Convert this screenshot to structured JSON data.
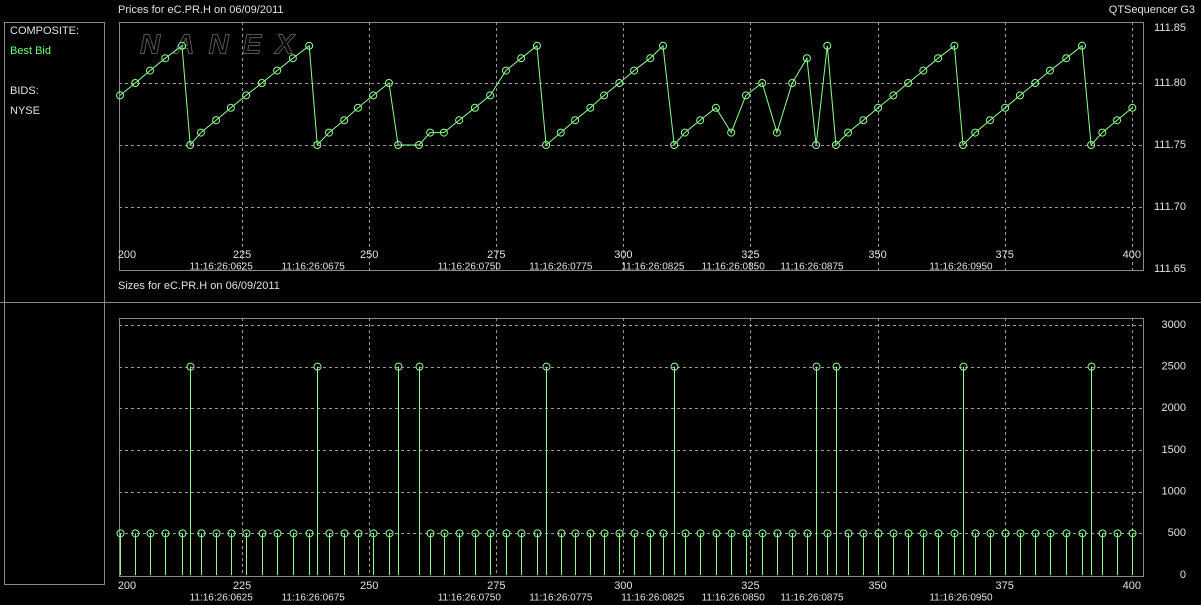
{
  "brand": "QTSequencer G3",
  "watermark": "NANEX",
  "panel": {
    "composite": "COMPOSITE:",
    "bids": "BIDS:",
    "exchange": "NYSE"
  },
  "chart_data": [
    {
      "type": "line",
      "title": "Prices for  eC.PR.H  on  06/09/2011",
      "x": [
        201.0,
        204.0,
        206.9,
        209.9,
        213.2,
        214.8,
        216.9,
        219.9,
        222.8,
        225.8,
        228.9,
        231.9,
        235.0,
        238.2,
        239.8,
        242.1,
        245.1,
        247.8,
        250.8,
        253.9,
        255.7,
        259.8,
        262.0,
        264.7,
        267.7,
        270.8,
        273.8,
        276.9,
        279.9,
        283.0,
        284.8,
        287.7,
        290.5,
        293.5,
        296.2,
        299.2,
        302.1,
        305.3,
        307.8,
        310.0,
        312.1,
        315.1,
        318.2,
        321.2,
        324.1,
        327.3,
        330.2,
        333.2,
        336.1,
        337.9,
        340.1,
        341.8,
        344.2,
        347.2,
        350.1,
        353.1,
        356.0,
        359.0,
        361.9,
        365.1,
        366.8,
        369.2,
        372.1,
        375.1,
        378.0,
        381.0,
        383.9,
        387.1,
        390.2,
        392.0,
        394.2,
        397.1,
        400.1
      ],
      "series": [
        {
          "name": "Best Bid",
          "color": "#8cff8c",
          "values": [
            111.79,
            111.8,
            111.81,
            111.82,
            111.83,
            111.75,
            111.76,
            111.77,
            111.78,
            111.79,
            111.8,
            111.81,
            111.82,
            111.83,
            111.75,
            111.76,
            111.77,
            111.78,
            111.79,
            111.8,
            111.75,
            111.75,
            111.76,
            111.76,
            111.77,
            111.78,
            111.79,
            111.81,
            111.82,
            111.83,
            111.75,
            111.76,
            111.77,
            111.78,
            111.79,
            111.8,
            111.81,
            111.82,
            111.83,
            111.75,
            111.76,
            111.77,
            111.78,
            111.76,
            111.79,
            111.8,
            111.76,
            111.8,
            111.82,
            111.75,
            111.83,
            111.75,
            111.76,
            111.77,
            111.78,
            111.79,
            111.8,
            111.81,
            111.82,
            111.83,
            111.75,
            111.76,
            111.77,
            111.78,
            111.79,
            111.8,
            111.81,
            111.82,
            111.83,
            111.75,
            111.76,
            111.77,
            111.78
          ]
        }
      ],
      "xlim": [
        200.8,
        402.2
      ],
      "xticks": [
        200,
        225,
        250,
        275,
        300,
        325,
        350,
        375,
        400
      ],
      "ylim": [
        111.65,
        111.85
      ],
      "yticks": [
        111.65,
        {
          "value": 111.7,
          "label": "111.70"
        },
        111.75,
        {
          "value": 111.8,
          "label": "111.80"
        },
        111.85
      ],
      "annotations": [
        {
          "value": 220.9,
          "label": "11:16:26:0625"
        },
        {
          "value": 239.0,
          "label": "11:16:26:0675"
        },
        {
          "value": 269.7,
          "label": "11:16:26:0750"
        },
        {
          "value": 287.7,
          "label": "11:16:26:0775"
        },
        {
          "value": 305.8,
          "label": "11:16:26:0825"
        },
        {
          "value": 321.6,
          "label": "11:16:26:0850"
        },
        {
          "value": 337.1,
          "label": "11:16:26:0875"
        },
        {
          "value": 366.4,
          "label": "11:16:26:0950"
        }
      ],
      "grid": true
    },
    {
      "type": "stem",
      "title": "Sizes for  eC.PR.H  on  06/09/2011",
      "x": [
        201.0,
        204.0,
        206.9,
        209.9,
        213.2,
        214.8,
        216.9,
        219.9,
        222.8,
        225.8,
        228.9,
        231.9,
        235.0,
        238.2,
        239.8,
        242.1,
        245.1,
        247.8,
        250.8,
        253.9,
        255.7,
        259.8,
        262.0,
        264.7,
        267.7,
        270.8,
        273.8,
        276.9,
        279.9,
        283.0,
        284.8,
        287.7,
        290.5,
        293.5,
        296.2,
        299.2,
        302.1,
        305.3,
        307.8,
        310.0,
        312.1,
        315.1,
        318.2,
        321.2,
        324.1,
        327.3,
        330.2,
        333.2,
        336.1,
        337.9,
        340.1,
        341.8,
        344.2,
        347.2,
        350.1,
        353.1,
        356.0,
        359.0,
        361.9,
        365.1,
        366.8,
        369.2,
        372.1,
        375.1,
        378.0,
        381.0,
        383.9,
        387.1,
        390.2,
        392.0,
        394.2,
        397.1,
        400.1
      ],
      "color": "#8cff8c",
      "values": [
        500,
        500,
        500,
        500,
        500,
        2500,
        500,
        500,
        500,
        500,
        500,
        500,
        500,
        500,
        2500,
        500,
        500,
        500,
        500,
        500,
        2500,
        2500,
        500,
        500,
        500,
        500,
        500,
        500,
        500,
        500,
        2500,
        500,
        500,
        500,
        500,
        500,
        500,
        500,
        500,
        2500,
        500,
        500,
        500,
        500,
        500,
        500,
        500,
        500,
        500,
        2500,
        500,
        2500,
        500,
        500,
        500,
        500,
        500,
        500,
        500,
        500,
        2500,
        500,
        500,
        500,
        500,
        500,
        500,
        500,
        500,
        2500,
        500,
        500,
        500
      ],
      "xlim": [
        200.8,
        402.2
      ],
      "xticks": [
        200,
        225,
        250,
        275,
        300,
        325,
        350,
        375,
        400
      ],
      "ylim": [
        0,
        3000
      ],
      "yticks": [
        0,
        500,
        1000,
        1500,
        2000,
        2500,
        3000
      ],
      "annotations": [
        {
          "value": 220.9,
          "label": "11:16:26:0625"
        },
        {
          "value": 239.0,
          "label": "11:16:26:0675"
        },
        {
          "value": 269.7,
          "label": "11:16:26:0750"
        },
        {
          "value": 287.7,
          "label": "11:16:26:0775"
        },
        {
          "value": 305.8,
          "label": "11:16:26:0825"
        },
        {
          "value": 321.6,
          "label": "11:16:26:0850"
        },
        {
          "value": 337.1,
          "label": "11:16:26:0875"
        },
        {
          "value": 366.4,
          "label": "11:16:26:0950"
        }
      ],
      "grid": true
    }
  ]
}
